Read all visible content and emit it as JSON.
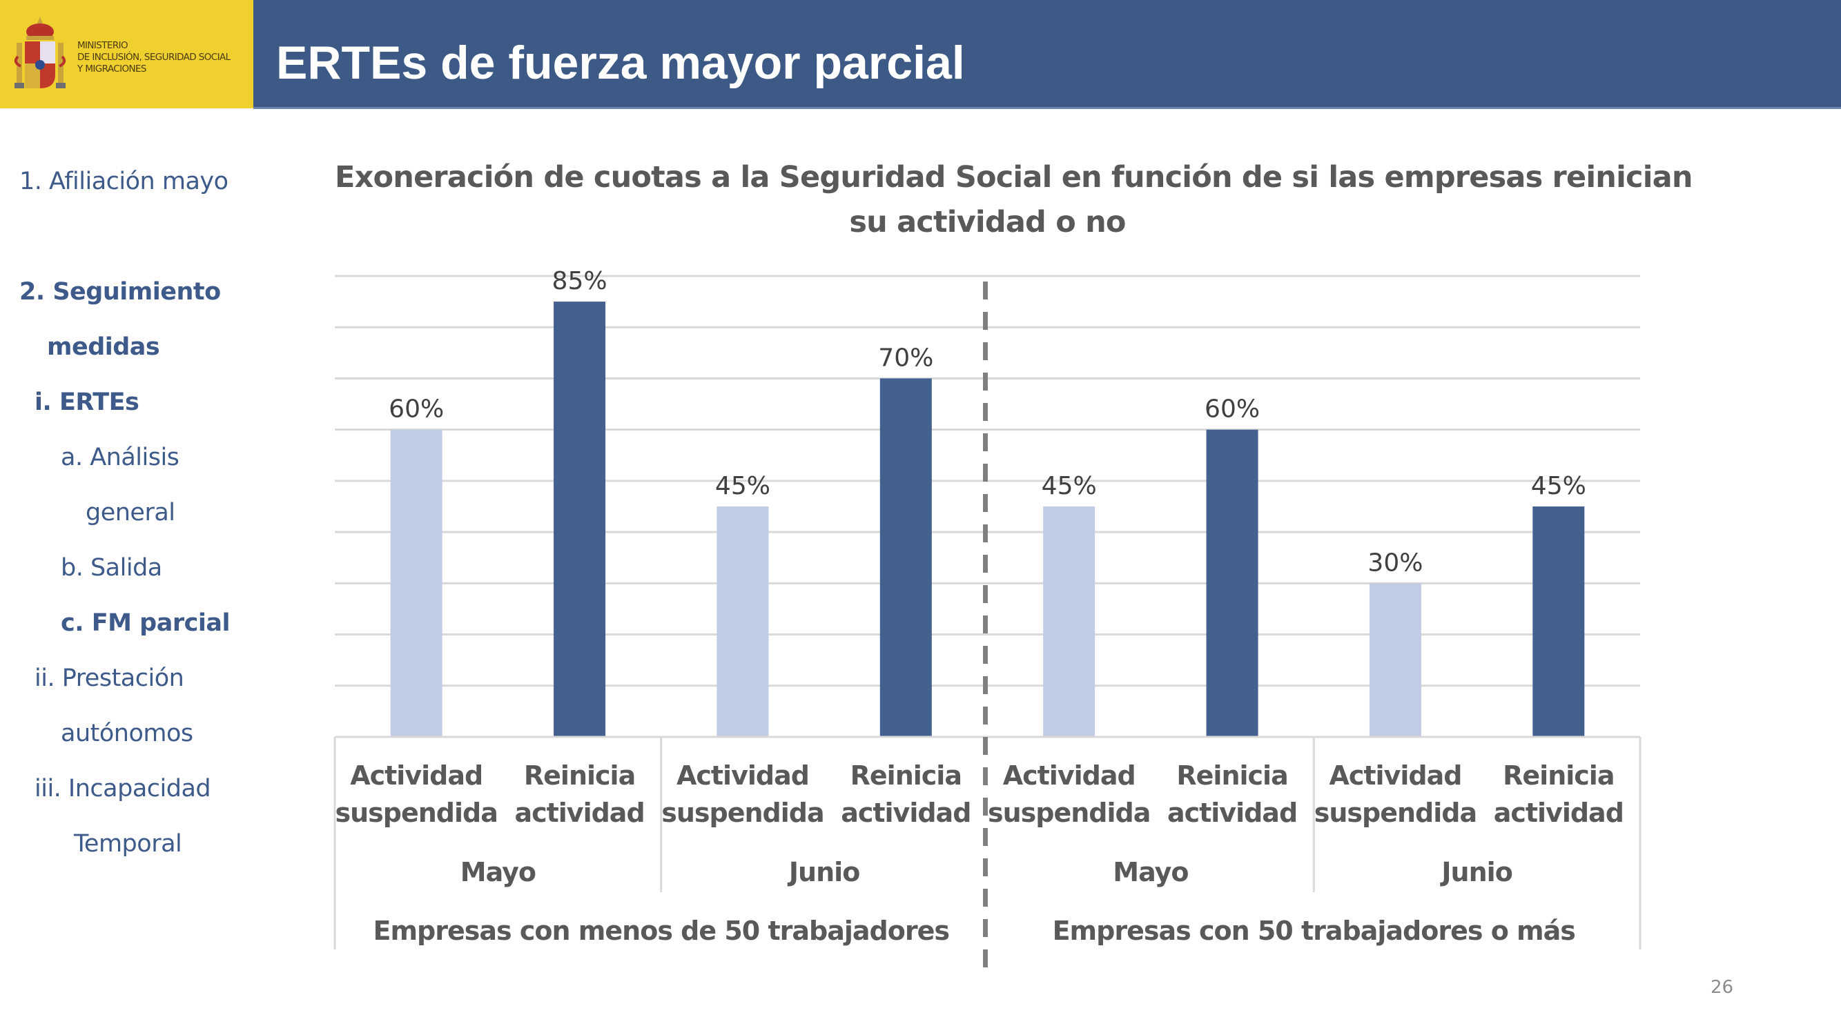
{
  "header": {
    "title": "ERTEs de fuerza mayor parcial",
    "ministry_lines": [
      "MINISTERIO",
      "DE INCLUSIÓN, SEGURIDAD SOCIAL",
      "Y MIGRACIONES"
    ],
    "logo_icon": "spain-coat-of-arms-icon",
    "colors": {
      "logo_background": "#efd02f",
      "title_background": "#3d5a87"
    }
  },
  "sidebar": {
    "items": [
      {
        "label": "1. Afiliación mayo",
        "bold": false
      },
      {
        "label": "2. Seguimiento",
        "bold": true
      },
      {
        "label": "medidas",
        "bold": true
      },
      {
        "label": "i.   ERTEs",
        "bold": true
      },
      {
        "label": "a. Análisis",
        "bold": false
      },
      {
        "label": "general",
        "bold": false
      },
      {
        "label": "b. Salida",
        "bold": false
      },
      {
        "label": "c. FM parcial",
        "bold": true
      },
      {
        "label": "ii.  Prestación",
        "bold": false
      },
      {
        "label": "autónomos",
        "bold": false
      },
      {
        "label": "iii.  Incapacidad",
        "bold": false
      },
      {
        "label": "Temporal",
        "bold": false
      }
    ]
  },
  "chart_data": {
    "type": "bar",
    "title": "Exoneración de cuotas a la Seguridad Social en función de si las empresas reinician su actividad o no",
    "title_lines": [
      "Exoneración de cuotas a la Seguridad Social en función de si las empresas reinician",
      "su actividad o no"
    ],
    "xlabel": "",
    "ylabel": "",
    "ylim": [
      0,
      90
    ],
    "grid": true,
    "gridline_step": 10,
    "y_axis_visible": false,
    "legend": "none",
    "categories": [
      {
        "lines": [
          "Actividad",
          "suspendida"
        ],
        "month": "Mayo",
        "group": "Empresas con menos de 50 trabajadores",
        "value": 60,
        "label": "60%",
        "series": "Actividad suspendida"
      },
      {
        "lines": [
          "Reinicia",
          "actividad"
        ],
        "month": "Mayo",
        "group": "Empresas con menos de 50 trabajadores",
        "value": 85,
        "label": "85%",
        "series": "Reinicia actividad"
      },
      {
        "lines": [
          "Actividad",
          "suspendida"
        ],
        "month": "Junio",
        "group": "Empresas con menos de 50 trabajadores",
        "value": 45,
        "label": "45%",
        "series": "Actividad suspendida"
      },
      {
        "lines": [
          "Reinicia",
          "actividad"
        ],
        "month": "Junio",
        "group": "Empresas con menos de 50 trabajadores",
        "value": 70,
        "label": "70%",
        "series": "Reinicia actividad"
      },
      {
        "lines": [
          "Actividad",
          "suspendida"
        ],
        "month": "Mayo",
        "group": "Empresas con 50 trabajadores o más",
        "value": 45,
        "label": "45%",
        "series": "Actividad suspendida"
      },
      {
        "lines": [
          "Reinicia",
          "actividad"
        ],
        "month": "Mayo",
        "group": "Empresas con 50 trabajadores o más",
        "value": 60,
        "label": "60%",
        "series": "Reinicia actividad"
      },
      {
        "lines": [
          "Actividad",
          "suspendida"
        ],
        "month": "Junio",
        "group": "Empresas con 50 trabajadores o más",
        "value": 30,
        "label": "30%",
        "series": "Actividad suspendida"
      },
      {
        "lines": [
          "Reinicia",
          "actividad"
        ],
        "month": "Junio",
        "group": "Empresas con 50 trabajadores o más",
        "value": 45,
        "label": "45%",
        "series": "Reinicia actividad"
      }
    ],
    "months": [
      "Mayo",
      "Junio",
      "Mayo",
      "Junio"
    ],
    "groups": [
      "Empresas con menos de 50 trabajadores",
      "Empresas con 50 trabajadores o más"
    ],
    "series_colors": {
      "Actividad suspendida": "#bfcce4",
      "Reinicia actividad": "#44608f"
    },
    "separator": "dashed vertical line between groups"
  },
  "footer": {
    "page_number": "26"
  }
}
